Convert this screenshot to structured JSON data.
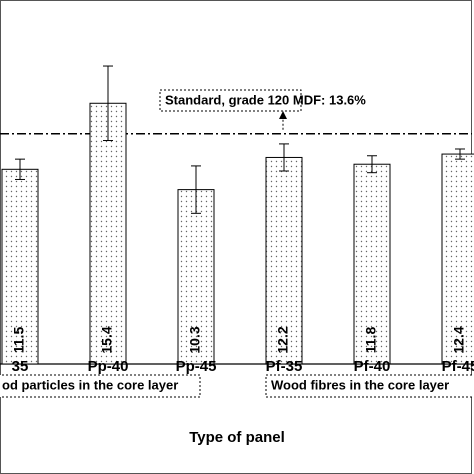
{
  "chart_data": {
    "type": "bar",
    "categories": [
      "35",
      "Pp-40",
      "Pp-45",
      "Pf-35",
      "Pf-40",
      "Pf-45"
    ],
    "values": [
      11.5,
      15.4,
      10.3,
      12.2,
      11.8,
      12.4
    ],
    "errors": [
      0.6,
      2.2,
      1.4,
      0.8,
      0.5,
      0.3
    ],
    "ylim": [
      0,
      21.5
    ],
    "reference": 13.6,
    "annotation": "Standard, grade 120 MDF: 13.6%",
    "groups": [
      "od particles in the core layer",
      "Wood fibres in the core layer"
    ],
    "x_label": "Type of panel"
  }
}
